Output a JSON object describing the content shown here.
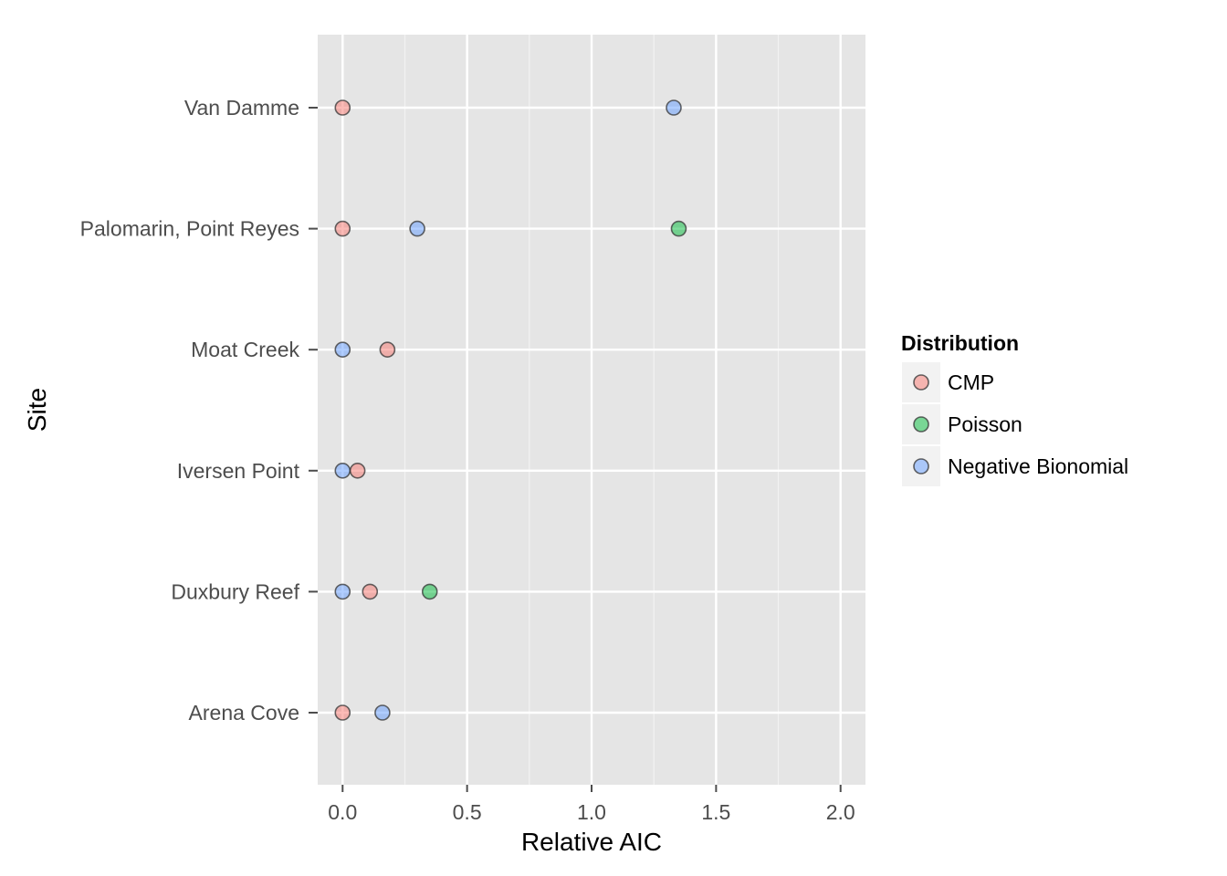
{
  "chart_data": {
    "type": "scatter",
    "xlabel": "Relative AIC",
    "ylabel": "Site",
    "xlim": [
      -0.1,
      2.1
    ],
    "x_ticks": [
      "0.0",
      "0.5",
      "1.0",
      "1.5",
      "2.0"
    ],
    "x_tick_values": [
      0,
      0.5,
      1.0,
      1.5,
      2.0
    ],
    "categories": [
      "Arena Cove",
      "Duxbury Reef",
      "Iversen Point",
      "Moat Creek",
      "Palomarin, Point Reyes",
      "Van Damme"
    ],
    "grid": true,
    "legend_position": "right",
    "legend_title": "Distribution",
    "series": [
      {
        "name": "CMP",
        "color": "#f8766d",
        "points": [
          {
            "site": "Arena Cove",
            "x": 0.0
          },
          {
            "site": "Duxbury Reef",
            "x": 0.11
          },
          {
            "site": "Iversen Point",
            "x": 0.06
          },
          {
            "site": "Moat Creek",
            "x": 0.18
          },
          {
            "site": "Palomarin, Point Reyes",
            "x": 0.0
          },
          {
            "site": "Van Damme",
            "x": 0.0
          }
        ]
      },
      {
        "name": "Poisson",
        "color": "#00ba38",
        "points": [
          {
            "site": "Duxbury Reef",
            "x": 0.35
          },
          {
            "site": "Palomarin, Point Reyes",
            "x": 1.35
          }
        ]
      },
      {
        "name": "Negative Bionomial",
        "color": "#619cff",
        "points": [
          {
            "site": "Arena Cove",
            "x": 0.16
          },
          {
            "site": "Duxbury Reef",
            "x": 0.0
          },
          {
            "site": "Iversen Point",
            "x": 0.0
          },
          {
            "site": "Moat Creek",
            "x": 0.0
          },
          {
            "site": "Palomarin, Point Reyes",
            "x": 0.3
          },
          {
            "site": "Van Damme",
            "x": 1.33
          }
        ]
      }
    ]
  }
}
